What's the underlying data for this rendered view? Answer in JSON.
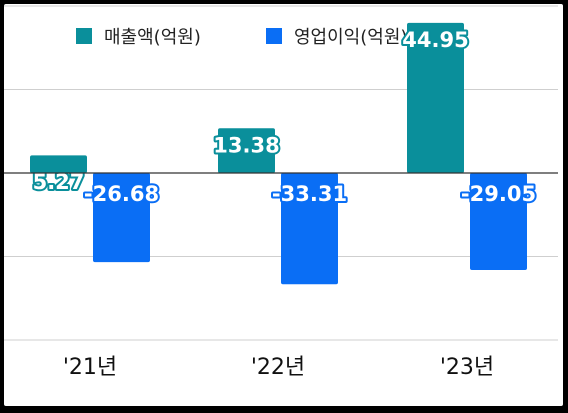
{
  "chart_data": {
    "type": "bar",
    "categories": [
      "'21년",
      "'22년",
      "'23년"
    ],
    "series": [
      {
        "name": "매출액(억원)",
        "color": "#0a8f9b",
        "values": [
          5.27,
          13.38,
          44.95
        ]
      },
      {
        "name": "영업이익(억원)",
        "color": "#0a6ef5",
        "values": [
          -26.68,
          -33.31,
          -29.05
        ]
      }
    ],
    "ylim": [
      -50,
      50
    ],
    "grid": true,
    "legend_position": "top",
    "data_labels": true
  }
}
